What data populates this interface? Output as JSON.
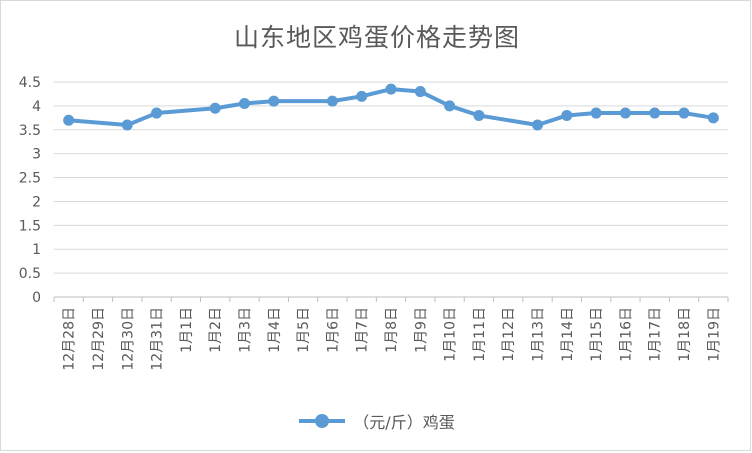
{
  "chart_data": {
    "type": "line",
    "title": "山东地区鸡蛋价格走势图",
    "categories": [
      "12月28日",
      "12月29日",
      "12月30日",
      "12月31日",
      "1月1日",
      "1月2日",
      "1月3日",
      "1月4日",
      "1月5日",
      "1月6日",
      "1月7日",
      "1月8日",
      "1月9日",
      "1月10日",
      "1月11日",
      "1月12日",
      "1月13日",
      "1月14日",
      "1月15日",
      "1月16日",
      "1月17日",
      "1月18日",
      "1月19日"
    ],
    "series": [
      {
        "name": "（元/斤）鸡蛋",
        "color": "#5b9bd5",
        "values": [
          3.7,
          null,
          3.6,
          3.85,
          null,
          3.95,
          4.05,
          4.1,
          null,
          4.1,
          4.2,
          4.35,
          4.3,
          4.0,
          3.8,
          null,
          3.6,
          3.8,
          3.85,
          3.85,
          3.85,
          3.85,
          3.75
        ]
      }
    ],
    "yticks": [
      "0",
      "0.5",
      "1",
      "1.5",
      "2",
      "2.5",
      "3",
      "3.5",
      "4",
      "4.5"
    ],
    "ylim": [
      0,
      4.5
    ],
    "grid": true,
    "legend_position": "bottom"
  }
}
